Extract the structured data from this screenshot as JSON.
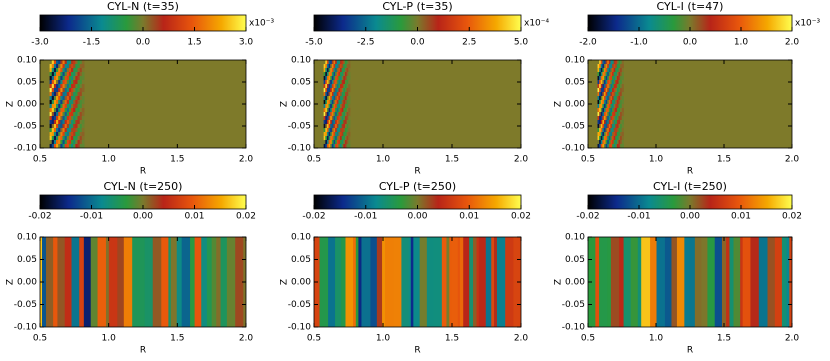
{
  "chart_data": [
    {
      "type": "heatmap",
      "title": "CYL-N (t=35)",
      "xlabel": "R",
      "ylabel": "Z",
      "colorbar": {
        "clim": [
          -3,
          3
        ],
        "cticks": [
          {
            "value": -3,
            "label": "-3.0"
          },
          -1.5,
          {
            "value": 0,
            "label": "0.0"
          },
          1.5,
          {
            "value": 3,
            "label": "3.0"
          }
        ],
        "scale_label": "x10⁻³"
      },
      "xlim": [
        0.5,
        2
      ],
      "xticks": [
        0.5,
        {
          "value": 1,
          "label": "1.0"
        },
        1.5,
        {
          "value": 2,
          "label": "2.0"
        }
      ],
      "ylim": [
        -0.1,
        0.1
      ],
      "yticks": [
        {
          "value": 0.1,
          "label": "0.10"
        },
        0.05,
        {
          "value": 0,
          "label": "0.00"
        },
        -0.05,
        {
          "value": -0.1,
          "label": "-0.10"
        }
      ]
    },
    {
      "type": "heatmap",
      "title": "CYL-P (t=35)",
      "xlabel": "R",
      "ylabel": "Z",
      "colorbar": {
        "clim": [
          -5,
          5
        ],
        "cticks": [
          {
            "value": -5,
            "label": "-5.0"
          },
          -2.5,
          {
            "value": 0,
            "label": "0.0"
          },
          2.5,
          {
            "value": 5,
            "label": "5.0"
          }
        ],
        "scale_label": "x10⁻⁴"
      },
      "xlim": [
        0.5,
        2
      ],
      "xticks": [
        0.5,
        {
          "value": 1,
          "label": "1.0"
        },
        1.5,
        {
          "value": 2,
          "label": "2.0"
        }
      ],
      "ylim": [
        -0.1,
        0.1
      ],
      "yticks": [
        {
          "value": 0.1,
          "label": "0.10"
        },
        0.05,
        {
          "value": 0,
          "label": "0.00"
        },
        -0.05,
        {
          "value": -0.1,
          "label": "-0.10"
        }
      ]
    },
    {
      "type": "heatmap",
      "title": "CYL-I (t=47)",
      "xlabel": "R",
      "ylabel": "Z",
      "colorbar": {
        "clim": [
          -2,
          2
        ],
        "cticks": [
          {
            "value": -2,
            "label": "-2.0"
          },
          {
            "value": -1,
            "label": "-1.0"
          },
          {
            "value": 0,
            "label": "0.0"
          },
          {
            "value": 1,
            "label": "1.0"
          },
          {
            "value": 2,
            "label": "2.0"
          }
        ],
        "scale_label": "x10⁻³"
      },
      "xlim": [
        0.5,
        2
      ],
      "xticks": [
        0.5,
        {
          "value": 1,
          "label": "1.0"
        },
        1.5,
        {
          "value": 2,
          "label": "2.0"
        }
      ],
      "ylim": [
        -0.1,
        0.1
      ],
      "yticks": [
        {
          "value": 0.1,
          "label": "0.10"
        },
        0.05,
        {
          "value": 0,
          "label": "0.00"
        },
        -0.05,
        {
          "value": -0.1,
          "label": "-0.10"
        }
      ]
    },
    {
      "type": "heatmap",
      "title": "CYL-N (t=250)",
      "xlabel": "R",
      "ylabel": "Z",
      "colorbar": {
        "clim": [
          -0.02,
          0.02
        ],
        "cticks": [
          -0.02,
          -0.01,
          {
            "value": 0,
            "label": "0.00"
          },
          0.01,
          0.02
        ]
      },
      "xlim": [
        0.5,
        2
      ],
      "xticks": [
        0.5,
        {
          "value": 1,
          "label": "1.0"
        },
        1.5,
        {
          "value": 2,
          "label": "2.0"
        }
      ],
      "ylim": [
        -0.1,
        0.1
      ],
      "yticks": [
        {
          "value": 0.1,
          "label": "0.10"
        },
        0.05,
        {
          "value": 0,
          "label": "0.00"
        },
        -0.05,
        {
          "value": -0.1,
          "label": "-0.10"
        }
      ]
    },
    {
      "type": "heatmap",
      "title": "CYL-P (t=250)",
      "xlabel": "R",
      "ylabel": "Z",
      "colorbar": {
        "clim": [
          -0.02,
          0.02
        ],
        "cticks": [
          -0.02,
          -0.01,
          {
            "value": 0,
            "label": "0.00"
          },
          0.01,
          0.02
        ]
      },
      "xlim": [
        0.5,
        2
      ],
      "xticks": [
        0.5,
        {
          "value": 1,
          "label": "1.0"
        },
        1.5,
        {
          "value": 2,
          "label": "2.0"
        }
      ],
      "ylim": [
        -0.1,
        0.1
      ],
      "yticks": [
        {
          "value": 0.1,
          "label": "0.10"
        },
        0.05,
        {
          "value": 0,
          "label": "0.00"
        },
        -0.05,
        {
          "value": -0.1,
          "label": "-0.10"
        }
      ]
    },
    {
      "type": "heatmap",
      "title": "CYL-I (t=250)",
      "xlabel": "R",
      "ylabel": "Z",
      "colorbar": {
        "clim": [
          -0.02,
          0.02
        ],
        "cticks": [
          -0.02,
          -0.01,
          {
            "value": 0,
            "label": "0.00"
          },
          0.01,
          0.02
        ]
      },
      "xlim": [
        0.5,
        2
      ],
      "xticks": [
        0.5,
        {
          "value": 1,
          "label": "1.0"
        },
        1.5,
        {
          "value": 2,
          "label": "2.0"
        }
      ],
      "ylim": [
        -0.1,
        0.1
      ],
      "yticks": [
        {
          "value": 0.1,
          "label": "0.10"
        },
        0.05,
        {
          "value": 0,
          "label": "0.00"
        },
        -0.05,
        {
          "value": -0.1,
          "label": "-0.10"
        }
      ]
    }
  ]
}
